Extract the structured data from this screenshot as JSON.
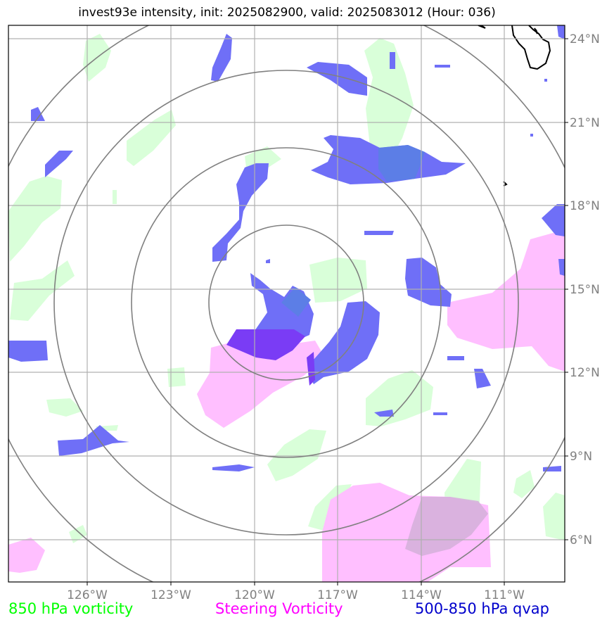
{
  "title": "invest93e intensity, init: 2025082900, valid: 2025083012 (Hour: 036)",
  "longitude_ticks": [
    "126°W",
    "123°W",
    "120°W",
    "117°W",
    "114°W",
    "111°W"
  ],
  "latitude_ticks": [
    "24°N",
    "21°N",
    "18°N",
    "15°N",
    "12°N",
    "9°N",
    "6°N"
  ],
  "legend": [
    {
      "label": "850 hPa vorticity",
      "color": "#00ff00"
    },
    {
      "label": "Steering Vorticity",
      "color": "#ff00ff"
    },
    {
      "label": "500-850 hPa qvap",
      "color": "#0000cc"
    }
  ],
  "storm_center": {
    "lat": 14.6,
    "lon": "118.8°W"
  },
  "range_rings": 4,
  "colors": {
    "vorticity_850": "#d9ffd9",
    "steering_vorticity": "#ffbfff",
    "qvap": "#6f6ff7",
    "overlap": "#7a3cf5",
    "grid": "#b0b0b0",
    "ring": "#808080",
    "coast": "#000000"
  }
}
